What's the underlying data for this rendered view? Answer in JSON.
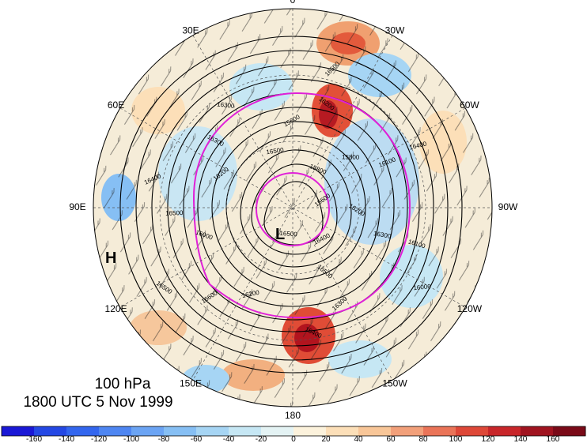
{
  "caption": {
    "level": "100 hPa",
    "time": "1800 UTC 5 Nov 1999"
  },
  "longitude_labels": [
    {
      "text": "0",
      "deg": 0
    },
    {
      "text": "30W",
      "deg": 30
    },
    {
      "text": "60W",
      "deg": 60
    },
    {
      "text": "90W",
      "deg": 90
    },
    {
      "text": "120W",
      "deg": 120
    },
    {
      "text": "150W",
      "deg": 150
    },
    {
      "text": "180",
      "deg": 180
    },
    {
      "text": "150E",
      "deg": 210
    },
    {
      "text": "120E",
      "deg": 240
    },
    {
      "text": "90E",
      "deg": 270
    },
    {
      "text": "60E",
      "deg": 300
    },
    {
      "text": "30E",
      "deg": 330
    }
  ],
  "pressure_centers": [
    {
      "label": "L",
      "type": "low"
    },
    {
      "label": "H",
      "type": "high"
    }
  ],
  "contour_labels": [
    "16500",
    "16400",
    "16100",
    "16300",
    "16200",
    "16000",
    "16200",
    "16500",
    "15800",
    "15600",
    "16000",
    "15400",
    "16600",
    "16500",
    "16300",
    "15600",
    "15800",
    "16200",
    "16400",
    "16500",
    "16500",
    "16400",
    "16300",
    "16200",
    "16100",
    "16300",
    "16500"
  ],
  "colorbar": {
    "ticks": [
      "-160",
      "-140",
      "-120",
      "-100",
      "-80",
      "-60",
      "-40",
      "-20",
      "0",
      "20",
      "40",
      "60",
      "80",
      "100",
      "120",
      "140",
      "160"
    ],
    "colors": [
      "#1a18d6",
      "#2448e4",
      "#3366ee",
      "#4e86f2",
      "#6ba4f4",
      "#86bff4",
      "#a6d5f4",
      "#c6e7f4",
      "#e4f3f4",
      "#fcf2dc",
      "#fcdfb8",
      "#f8c698",
      "#f2a07a",
      "#ea7458",
      "#de4838",
      "#c8262a",
      "#a01420",
      "#7a0a18"
    ]
  }
}
